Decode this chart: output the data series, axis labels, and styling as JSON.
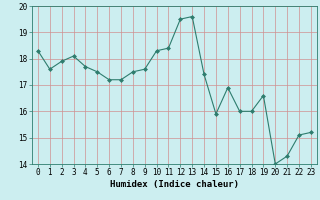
{
  "title": "",
  "x_values": [
    0,
    1,
    2,
    3,
    4,
    5,
    6,
    7,
    8,
    9,
    10,
    11,
    12,
    13,
    14,
    15,
    16,
    17,
    18,
    19,
    20,
    21,
    22,
    23
  ],
  "y_values": [
    18.3,
    17.6,
    17.9,
    18.1,
    17.7,
    17.5,
    17.2,
    17.2,
    17.5,
    17.6,
    18.3,
    18.4,
    19.5,
    19.6,
    17.4,
    15.9,
    16.9,
    16.0,
    16.0,
    16.6,
    14.0,
    14.3,
    15.1,
    15.2
  ],
  "line_color": "#2e7d6e",
  "marker": "D",
  "marker_size": 2,
  "xlabel": "Humidex (Indice chaleur)",
  "ylim": [
    14,
    20
  ],
  "xlim": [
    -0.5,
    23.5
  ],
  "yticks": [
    14,
    15,
    16,
    17,
    18,
    19,
    20
  ],
  "xticks": [
    0,
    1,
    2,
    3,
    4,
    5,
    6,
    7,
    8,
    9,
    10,
    11,
    12,
    13,
    14,
    15,
    16,
    17,
    18,
    19,
    20,
    21,
    22,
    23
  ],
  "bg_color": "#cceef0",
  "grid_color_v": "#d09090",
  "grid_color_h": "#d09090",
  "tick_fontsize": 5.5,
  "label_fontsize": 6.5,
  "line_width": 0.8
}
